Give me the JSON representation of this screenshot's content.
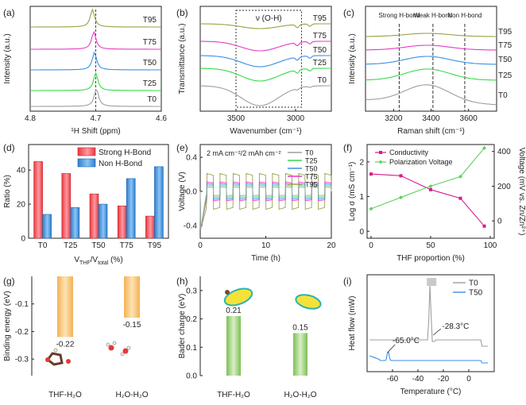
{
  "colors": {
    "T0": "#9e9e9e",
    "T25": "#37d94a",
    "T50": "#3a8fe6",
    "T75": "#e43bc8",
    "T95": "#9aa046",
    "red": "#e8383f",
    "blue": "#2c7fd0",
    "orange": "#f0a040",
    "green": "#78b650",
    "pink": "#d91b8b",
    "lightgreen": "#5fd15f"
  },
  "chart_data": [
    {
      "id": "a",
      "panel_label": "(a)",
      "type": "line",
      "title": "",
      "xlabel": "¹H Shift (ppm)",
      "ylabel": "Intensity (a.u.)",
      "xlim": [
        4.8,
        4.6
      ],
      "xticks": [
        "4.6",
        "4.7",
        "4.8"
      ],
      "reference_line_x": 4.7,
      "series": [
        {
          "name": "T95",
          "peak": 4.705
        },
        {
          "name": "T75",
          "peak": 4.703
        },
        {
          "name": "T50",
          "peak": 4.702
        },
        {
          "name": "T25",
          "peak": 4.7
        },
        {
          "name": "T0",
          "peak": 4.699
        }
      ]
    },
    {
      "id": "b",
      "panel_label": "(b)",
      "type": "line",
      "xlabel": "Wavenumber (cm⁻¹)",
      "ylabel": "Transmittance (a.u.)",
      "xlim": [
        3800,
        2700
      ],
      "xticks": [
        "3500",
        "3000"
      ],
      "annotation": "ν (O-H)",
      "region": [
        3500,
        2950
      ],
      "series": [
        {
          "name": "T95"
        },
        {
          "name": "T75"
        },
        {
          "name": "T50"
        },
        {
          "name": "T25"
        },
        {
          "name": "T0"
        }
      ]
    },
    {
      "id": "c",
      "panel_label": "(c)",
      "type": "line",
      "xlabel": "Raman shift (cm⁻¹)",
      "ylabel": "Intensity (a.u.)",
      "xlim": [
        3050,
        3750
      ],
      "xticks": [
        "3200",
        "3400",
        "3600"
      ],
      "annotations": [
        {
          "text": "Strong H-bond",
          "x": 3230
        },
        {
          "text": "Weak H-bond",
          "x": 3410
        },
        {
          "text": "Non H-bond",
          "x": 3580
        }
      ],
      "series": [
        {
          "name": "T95"
        },
        {
          "name": "T75"
        },
        {
          "name": "T50"
        },
        {
          "name": "T25"
        },
        {
          "name": "T0"
        }
      ]
    },
    {
      "id": "d",
      "panel_label": "(d)",
      "type": "bar",
      "categories": [
        "T0",
        "T25",
        "T50",
        "T75",
        "T95"
      ],
      "xlabel": "V",
      "xlabel_sub1": "THF",
      "xlabel_mid": "/V",
      "xlabel_sub2": "total",
      "xlabel_end": " (%)",
      "ylabel": "Ratio (%)",
      "ylim": [
        0,
        55
      ],
      "yticks": [
        "0",
        "20",
        "40"
      ],
      "series": [
        {
          "name": "Strong H-Bond",
          "values": [
            45,
            38,
            26,
            19,
            13
          ]
        },
        {
          "name": "Non H-Bond",
          "values": [
            14,
            18,
            20,
            35,
            42
          ]
        }
      ]
    },
    {
      "id": "e",
      "panel_label": "(e)",
      "type": "line",
      "annotation": "2 mA cm⁻²/2 mAh cm⁻²",
      "xlabel": "Time (h)",
      "ylabel": "Voltage (V)",
      "xlim": [
        0,
        20
      ],
      "ylim": [
        -0.55,
        0.55
      ],
      "xticks": [
        "0",
        "10",
        "20"
      ],
      "yticks": [
        "-0.4",
        "0.0",
        "0.4"
      ],
      "cycle_period_h": 2,
      "series": [
        {
          "name": "T0",
          "amplitude": 0.05
        },
        {
          "name": "T25",
          "amplitude": 0.07
        },
        {
          "name": "T50",
          "amplitude": 0.09
        },
        {
          "name": "T75",
          "amplitude": 0.11
        },
        {
          "name": "T95",
          "amplitude": 0.21
        }
      ]
    },
    {
      "id": "f",
      "panel_label": "(f)",
      "type": "line",
      "xlabel": "THF proportion (%)",
      "ylabel": "Log σ (mS cm⁻¹)",
      "ylabel_right": "Voltage (mV vs. Zn/Zn²⁺)",
      "x": [
        0,
        25,
        50,
        75,
        95
      ],
      "ylim": [
        -0.2,
        2.5
      ],
      "ylim_right": [
        -100,
        440
      ],
      "xticks": [
        "0",
        "50",
        "100"
      ],
      "yticks": [
        "0",
        "1",
        "2"
      ],
      "yticks_right": [
        "0",
        "200",
        "400"
      ],
      "series": [
        {
          "name": "Conductivity",
          "axis": "left",
          "values": [
            1.65,
            1.6,
            1.2,
            0.95,
            0.15
          ]
        },
        {
          "name": "Polarization Voltage",
          "axis": "right",
          "values": [
            70,
            135,
            200,
            255,
            420
          ]
        }
      ]
    },
    {
      "id": "g",
      "panel_label": "(g)",
      "type": "bar",
      "categories": [
        "THF-H₂O",
        "H₂O-H₂O"
      ],
      "values": [
        -0.22,
        -0.15
      ],
      "value_labels": [
        "-0.22",
        "-0.15"
      ],
      "ylabel": "Binding energy (eV)",
      "ylim": [
        -0.36,
        0
      ],
      "yticks": [
        "-0.1",
        "-0.2",
        "-0.3"
      ]
    },
    {
      "id": "h",
      "panel_label": "(h)",
      "type": "bar",
      "categories": [
        "THF-H₂O",
        "H₂O-H₂O"
      ],
      "values": [
        0.21,
        0.15
      ],
      "value_labels": [
        "0.21",
        "0.15"
      ],
      "ylabel": "Bader charge (eV)",
      "ylim": [
        0,
        0.35
      ],
      "yticks": [
        "0.0",
        "0.1",
        "0.2",
        "0.3"
      ]
    },
    {
      "id": "i",
      "panel_label": "(i)",
      "type": "line",
      "xlabel": "Temperature (°C)",
      "ylabel": "Heat flow (mW)",
      "xlim": [
        -80,
        20
      ],
      "xticks": [
        "-60",
        "-40",
        "-20",
        "0"
      ],
      "annotations": [
        {
          "text": "-28.3°C",
          "series": "T0",
          "x": -28.3
        },
        {
          "text": "-65.0°C",
          "series": "T50",
          "x": -65.0
        }
      ],
      "series": [
        {
          "name": "T0",
          "peak_x": -30
        },
        {
          "name": "T50",
          "peak_x": -63
        }
      ]
    }
  ]
}
